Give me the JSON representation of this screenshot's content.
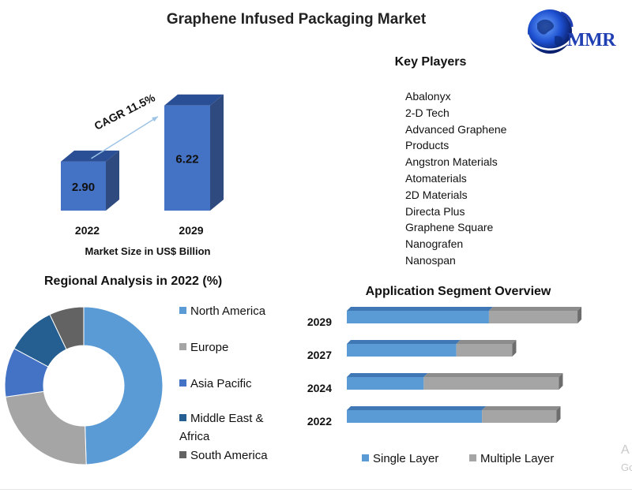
{
  "title": "Graphene Infused Packaging Market",
  "logo": {
    "text": "MMR"
  },
  "key_players": {
    "title": "Key Players",
    "items": [
      "Abalonyx",
      "2-D Tech",
      "Advanced Graphene",
      "Products",
      "Angstron Materials",
      "Atomaterials",
      "2D Materials",
      "Directa Plus",
      "Graphene Square",
      "Nanografen",
      "Nanospan"
    ]
  },
  "watermark": {
    "line1": "A",
    "line2": "Go"
  },
  "colors": {
    "bar_front": "#4472c4",
    "bar_top": "#2b4f95",
    "bar_side": "#2f4a7e",
    "north_america": "#5b9bd5",
    "europe": "#a5a5a5",
    "asia_pacific": "#4472c4",
    "middle_east_africa": "#255e91",
    "south_america": "#636363",
    "single_layer": "#5b9bd5",
    "multiple_layer": "#a5a5a5"
  },
  "chart_data": [
    {
      "type": "bar",
      "categories": [
        "2022",
        "2029"
      ],
      "values": [
        2.9,
        6.22
      ],
      "value_labels": [
        "2.90",
        "6.22"
      ],
      "xlabel": "Market Size in US$ Billion",
      "ylim": [
        0,
        7
      ],
      "annotation": "CAGR 11.5%",
      "grid": false
    },
    {
      "type": "pie",
      "title": "Regional Analysis in 2022 (%)",
      "categories": [
        "North America",
        "Europe",
        "Asia Pacific",
        "Middle East & Africa",
        "South America"
      ],
      "legend_lines": [
        [
          "North America"
        ],
        [
          "Europe"
        ],
        [
          "Asia Pacific"
        ],
        [
          "Middle East &",
          "Africa"
        ],
        [
          "South America"
        ]
      ],
      "values": [
        49,
        23,
        10,
        10,
        7
      ],
      "legend_position": "right"
    },
    {
      "type": "bar",
      "orientation": "horizontal",
      "stacked": true,
      "title": "Application Segment Overview",
      "categories": [
        "2029",
        "2027",
        "2024",
        "2022"
      ],
      "series": [
        {
          "name": "Single Layer",
          "values": [
            61,
            47,
            33,
            58
          ]
        },
        {
          "name": "Multiple Layer",
          "values": [
            38,
            24,
            58,
            32
          ]
        }
      ],
      "xlim": [
        0,
        100
      ],
      "legend_position": "bottom",
      "grid": false
    }
  ]
}
